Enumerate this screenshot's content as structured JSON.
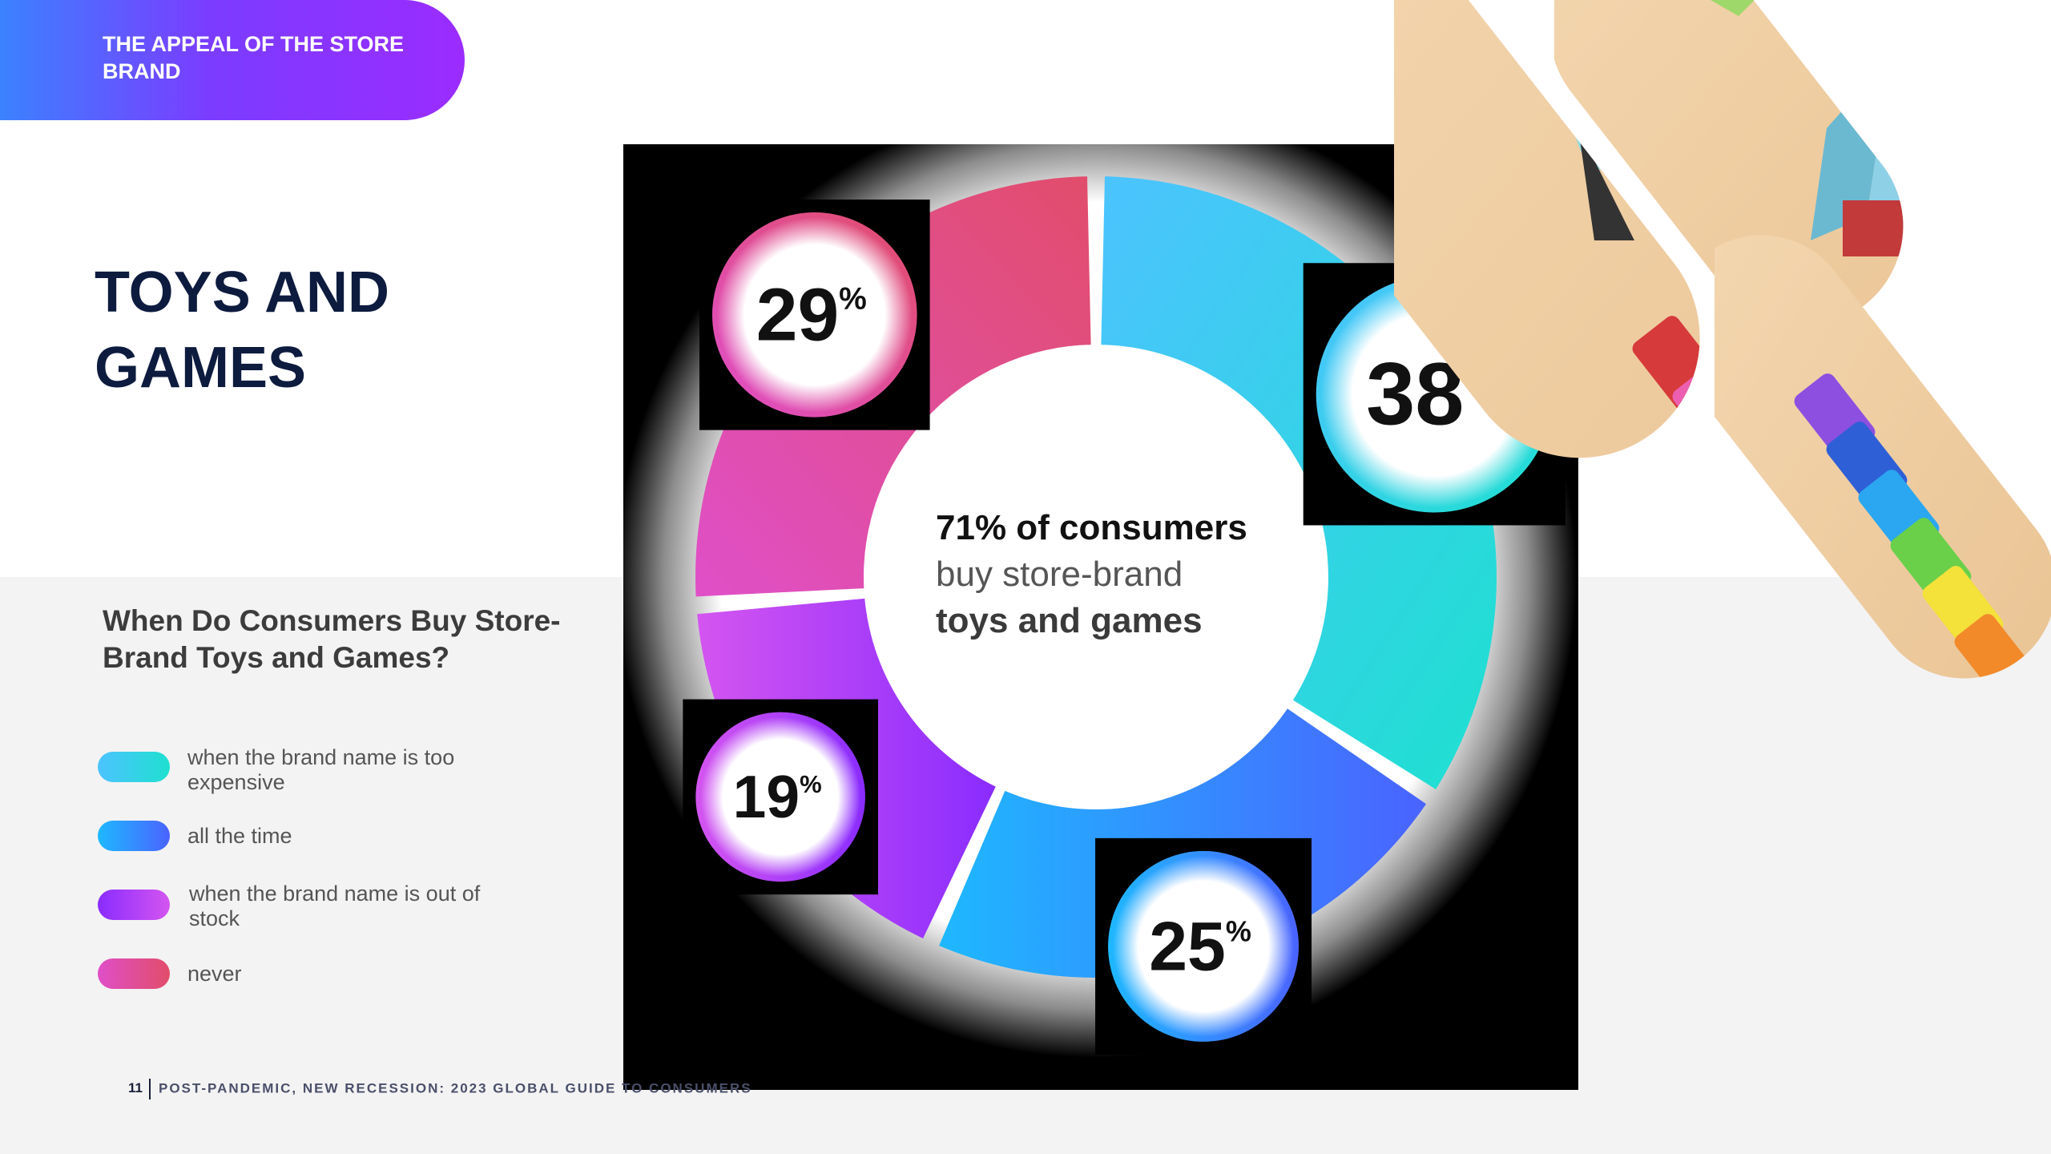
{
  "section_tag": "THE APPEAL OF THE STORE BRAND",
  "page_title": "TOYS AND GAMES",
  "chart_subtitle": "When Do Consumers Buy Store-Brand Toys and Games?",
  "center": {
    "line1": "71% of consumers",
    "line2": "buy store-brand",
    "line3": "toys and games"
  },
  "footer": {
    "page_number": "11",
    "text": "POST-PANDEMIC, NEW RECESSION: 2023 GLOBAL GUIDE TO CONSUMERS"
  },
  "chart_data": {
    "type": "pie",
    "variant": "donut",
    "unit": "%",
    "series": [
      {
        "name": "when the brand name is too expensive",
        "value": 38,
        "label": "38",
        "color_start": "#4cc3ff",
        "color_end": "#1ee0d0"
      },
      {
        "name": "all the time",
        "value": 25,
        "label": "25",
        "color_start": "#1eb8ff",
        "color_end": "#4a63ff"
      },
      {
        "name": "when the brand name is out of stock",
        "value": 19,
        "label": "19",
        "color_start": "#8a2cff",
        "color_end": "#d455f0"
      },
      {
        "name": "never",
        "value": 29,
        "label": "29",
        "color_start": "#e04fc8",
        "color_end": "#e14d6a"
      }
    ],
    "legend_position": "left"
  },
  "colors": {
    "title": "#0d1b3e",
    "tag_gradient_start": "#3b82ff",
    "tag_gradient_end": "#9b2cff",
    "panel_background": "#f3f3f3"
  }
}
